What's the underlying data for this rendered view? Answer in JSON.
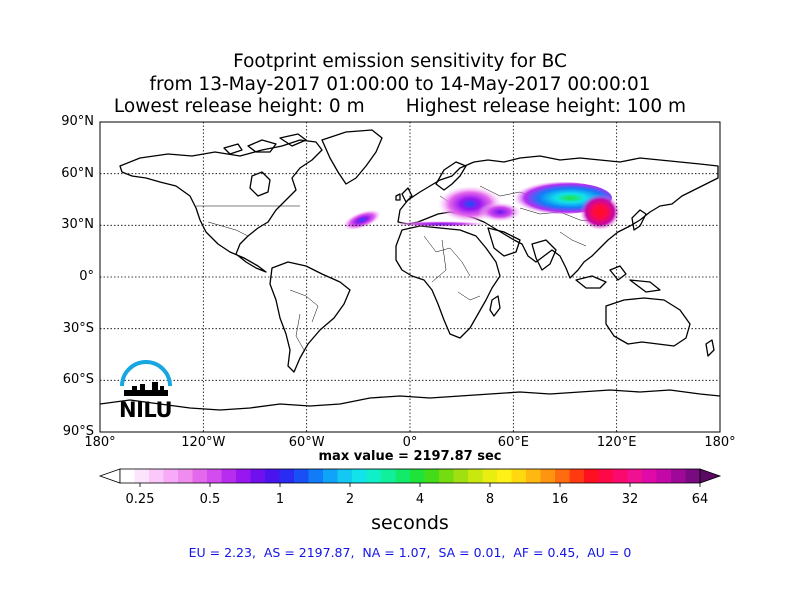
{
  "title": {
    "line1": "Footprint emission sensitivity for BC",
    "line2": "from 13-May-2017 01:00:00 to 14-May-2017 00:00:01",
    "line3": "Lowest release height: 0 m       Highest release height: 100 m"
  },
  "map": {
    "lat_labels": [
      "90°N",
      "60°N",
      "30°N",
      "0°",
      "30°S",
      "60°S",
      "90°S"
    ],
    "lon_labels": [
      "180°",
      "120°W",
      "60°W",
      "0°",
      "60°E",
      "120°E",
      "180°"
    ],
    "lat_values": [
      90,
      60,
      30,
      0,
      -30,
      -60,
      -90
    ],
    "lon_values": [
      -180,
      -120,
      -60,
      0,
      60,
      120,
      180
    ],
    "logo_text": "NILU",
    "colors": {
      "coast": "#000000",
      "grid": "#000000",
      "logo": "#18a6e0"
    }
  },
  "max_value": "max value = 2197.87 sec",
  "colorbar": {
    "ticks": [
      "0.25",
      "0.5",
      "1",
      "2",
      "4",
      "8",
      "16",
      "32",
      "64"
    ],
    "unit_label": "seconds",
    "colors": [
      "#ffffff",
      "#fde4fd",
      "#fbc8fb",
      "#f7aaf7",
      "#f08cf0",
      "#e468ec",
      "#d24cee",
      "#b82cf0",
      "#9816f0",
      "#7010ee",
      "#4a14ee",
      "#2a2cf2",
      "#1850f6",
      "#127cf8",
      "#10a4f8",
      "#14c8f4",
      "#12e2ea",
      "#10f0c8",
      "#10f09a",
      "#12ea6a",
      "#1ee43a",
      "#44dc18",
      "#74dc10",
      "#a0e010",
      "#c8e810",
      "#e8ee10",
      "#fff018",
      "#ffd810",
      "#ffb810",
      "#ff9410",
      "#ff6c10",
      "#ff3a10",
      "#ff1020",
      "#ff0848",
      "#fa0a6e",
      "#f01090",
      "#e00aa8",
      "#c408a8",
      "#a0089a",
      "#7a0a80"
    ],
    "over_color": "#5a0a62"
  },
  "footer": "EU = 2.23,  AS = 2197.87,  NA = 1.07,  SA = 0.01,  AF = 0.45,  AU = 0"
}
